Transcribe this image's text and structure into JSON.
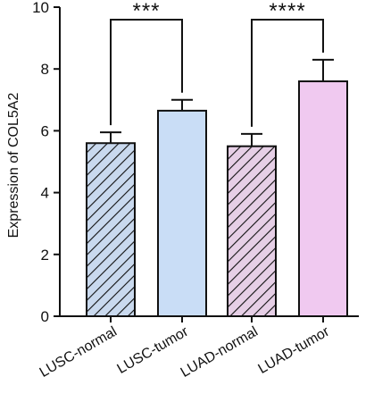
{
  "chart_data": {
    "type": "bar",
    "title": "",
    "xlabel": "",
    "ylabel": "Expression of COL5A2",
    "ylim": [
      0,
      10
    ],
    "yticks": [
      "0",
      "2",
      "4",
      "6",
      "8",
      "10"
    ],
    "categories": [
      "LUSC-normal",
      "LUSC-tumor",
      "LUAD-normal",
      "LUAD-tumor"
    ],
    "values": [
      5.6,
      6.65,
      5.5,
      7.6
    ],
    "errors": [
      0.35,
      0.35,
      0.4,
      0.7
    ],
    "hatched": [
      true,
      false,
      true,
      false
    ],
    "fill_colors": [
      "#c9d9ee",
      "#c9ddf6",
      "#e6cfe6",
      "#f0c9f0"
    ],
    "significance": [
      {
        "label": "***",
        "from": 0,
        "to": 1
      },
      {
        "label": "****",
        "from": 2,
        "to": 3
      }
    ],
    "grid": false,
    "legend": "none"
  }
}
